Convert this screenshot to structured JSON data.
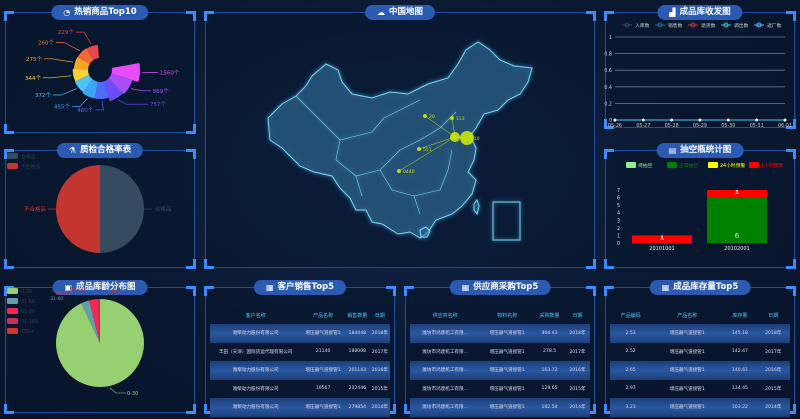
{
  "panels": {
    "hot": {
      "title": "热销商品Top10",
      "icon": "pie-chart-icon"
    },
    "map": {
      "title": "中国地图",
      "icon": "china-map-icon"
    },
    "flow": {
      "title": "成品库收发图",
      "icon": "area-chart-icon"
    },
    "quality": {
      "title": "质检合格率表",
      "icon": "flask-icon"
    },
    "vacuum": {
      "title": "抽空瓶统计图",
      "icon": "clipboard-icon"
    },
    "age": {
      "title": "成品库龄分布图",
      "icon": "train-icon"
    },
    "customer": {
      "title": "客户销售Top5",
      "icon": "table-icon"
    },
    "supplier": {
      "title": "供应商采购Top5",
      "icon": "table-icon"
    },
    "stock": {
      "title": "成品库存量Top5",
      "icon": "table-icon"
    }
  },
  "map_labels": [
    "20",
    "113",
    "710",
    "551",
    "0440"
  ],
  "tables": {
    "customer": {
      "headers": [
        "客户名称",
        "产品名称",
        "销售数量",
        "日期"
      ],
      "rows": [
        [
          "潍柴动力股份有限公司",
          "增压器气道接管1",
          "184448",
          "2018年"
        ],
        [
          "丰田（天津）国际货运代理有限公司",
          "21140",
          "188008",
          "2017年"
        ],
        [
          "潍柴动力股份有限公司",
          "增压器气道接管1",
          "201143",
          "2016年"
        ],
        [
          "潍柴动力股份有限公司",
          "19567",
          "202446",
          "2015年"
        ],
        [
          "潍柴动力股份有限公司",
          "增压器气道接管1",
          "279854",
          "2014年"
        ]
      ]
    },
    "supplier": {
      "headers": [
        "供应商名称",
        "物料名称",
        "采购数量",
        "日期"
      ],
      "rows": [
        [
          "潍坊市鸿建机工有限...",
          "增压器气道接管1",
          "464.43",
          "2018年"
        ],
        [
          "潍坊市鸿建机工有限...",
          "增压器气道接管1",
          "278.5",
          "2017年"
        ],
        [
          "潍坊市鸿建机工有限...",
          "增压器气道接管1",
          "163.72",
          "2016年"
        ],
        [
          "潍坊市鸿建机工有限...",
          "增压器气道接管1",
          "129.65",
          "2015年"
        ],
        [
          "潍坊市鸿建机工有限...",
          "增压器气道接管1",
          "182.54",
          "2014年"
        ]
      ]
    },
    "stock": {
      "headers": [
        "产品编码",
        "产品名称",
        "库存量",
        "日期"
      ],
      "rows": [
        [
          "2.53",
          "增压器气道接管1",
          "145.18",
          "2018年"
        ],
        [
          "2.52",
          "增压器气道接管1",
          "142.47",
          "2017年"
        ],
        [
          "2.65",
          "增压器气道接管1",
          "140.61",
          "2016年"
        ],
        [
          "2.97",
          "增压器气道接管1",
          "134.45",
          "2015年"
        ],
        [
          "3.23",
          "增压器气道接管1",
          "103.22",
          "2014年"
        ]
      ]
    }
  },
  "chart_data": [
    {
      "id": "hot",
      "type": "pie",
      "variant": "rose",
      "categories": [
        "229个",
        "260个",
        "275个",
        "344个",
        "372个",
        "455个",
        "460个",
        "757个",
        "869个",
        "1560个"
      ],
      "values": [
        229,
        260,
        275,
        344,
        372,
        455,
        460,
        757,
        869,
        1560
      ],
      "colors": [
        "#e8474f",
        "#f06a3a",
        "#f5a623",
        "#f7d23c",
        "#4fc3f7",
        "#3ba4f5",
        "#4d6cf7",
        "#6a4df7",
        "#a94df7",
        "#e84df7"
      ]
    },
    {
      "id": "flow",
      "type": "line",
      "x": [
        "05-26",
        "05-27",
        "05-28",
        "05-29",
        "05-30",
        "05-31",
        "06-01"
      ],
      "series": [
        {
          "name": "入库数",
          "values": [
            0,
            0,
            0,
            0,
            0,
            0,
            0
          ],
          "color": "#1f4e79"
        },
        {
          "name": "销售数",
          "values": [
            0,
            0,
            0,
            0,
            0,
            0,
            0
          ],
          "color": "#1e6f9f"
        },
        {
          "name": "退货数",
          "values": [
            0,
            0,
            0,
            0,
            0,
            0,
            0
          ],
          "color": "#c23531"
        },
        {
          "name": "调出数",
          "values": [
            0,
            0,
            0,
            0,
            0,
            0,
            0
          ],
          "color": "#2ec7c9"
        },
        {
          "name": "返厂数",
          "values": [
            0,
            0,
            0,
            0,
            0,
            0,
            0
          ],
          "color": "#4fc3f7"
        }
      ],
      "yticks": [
        "0",
        "0.2",
        "0.4",
        "0.6",
        "0.8",
        "1"
      ],
      "ylim": [
        0,
        1
      ],
      "grid": true,
      "legend": "top"
    },
    {
      "id": "quality",
      "type": "pie",
      "categories": [
        "合格品",
        "不合格品"
      ],
      "values": [
        50,
        50
      ],
      "colors": [
        "#334b5c",
        "#c23531"
      ],
      "legend": "top-left"
    },
    {
      "id": "vacuum",
      "type": "bar",
      "stacked": true,
      "categories": [
        "20101001",
        "20102001"
      ],
      "series": [
        {
          "name": "待抽空",
          "values": [
            0,
            0
          ],
          "color": "#90ee90"
        },
        {
          "name": "正常抽空",
          "values": [
            0,
            6
          ],
          "color": "#008000"
        },
        {
          "name": "24小时预警",
          "values": [
            0,
            0
          ],
          "color": "#ffff00"
        },
        {
          "name": "1小时预警",
          "values": [
            1,
            1
          ],
          "color": "#ff0000"
        }
      ],
      "yticks": [
        "0",
        "1",
        "2",
        "3",
        "4",
        "5",
        "6",
        "7"
      ],
      "ylim": [
        0,
        7
      ],
      "legend": "top",
      "data_labels": {
        "top": [
          "1",
          "1"
        ],
        "inside": [
          "",
          "6"
        ]
      }
    },
    {
      "id": "age",
      "type": "pie",
      "categories": [
        "0-30",
        "31-60",
        "61-90",
        "91-180",
        "180+"
      ],
      "values": [
        93,
        3,
        3.4,
        0.3,
        0.3
      ],
      "colors": [
        "#96d070",
        "#61a0a8",
        "#f0294f",
        "#c23455",
        "#d0362a"
      ],
      "legend": "top-left"
    }
  ]
}
